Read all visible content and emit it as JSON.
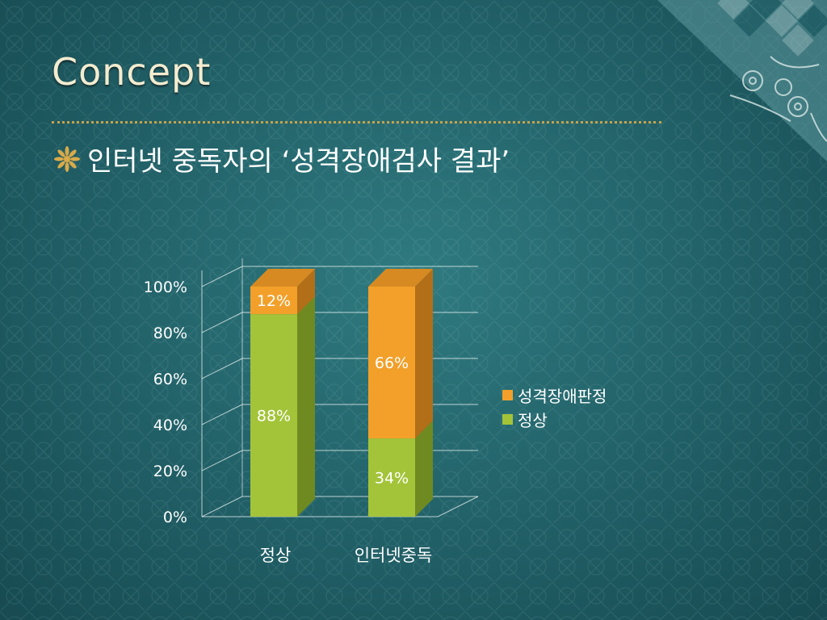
{
  "slide": {
    "title": "Concept",
    "bullet": "인터넷 중독자의 ‘성격장애검사 결과’"
  },
  "colors": {
    "normal": "#a3c439",
    "normal_side": "#6e8a20",
    "normal_top": "#c3dc64",
    "disorder": "#f2a02a",
    "disorder_side": "#b26f18",
    "disorder_top": "#d78a22",
    "accent": "#c7a24a"
  },
  "chart_data": {
    "type": "bar",
    "stacked": true,
    "categories": [
      "정상",
      "인터넷중독"
    ],
    "series": [
      {
        "name": "정상",
        "values": [
          88,
          34
        ],
        "labels": [
          "88%",
          "34%"
        ]
      },
      {
        "name": "성격장애판정",
        "values": [
          12,
          66
        ],
        "labels": [
          "12%",
          "66%"
        ]
      }
    ],
    "yticks": [
      "0%",
      "20%",
      "40%",
      "60%",
      "80%",
      "100%"
    ],
    "ylim": [
      0,
      100
    ],
    "grid": true,
    "legend_position": "right",
    "legend": [
      "성격장애판정",
      "정상"
    ]
  }
}
